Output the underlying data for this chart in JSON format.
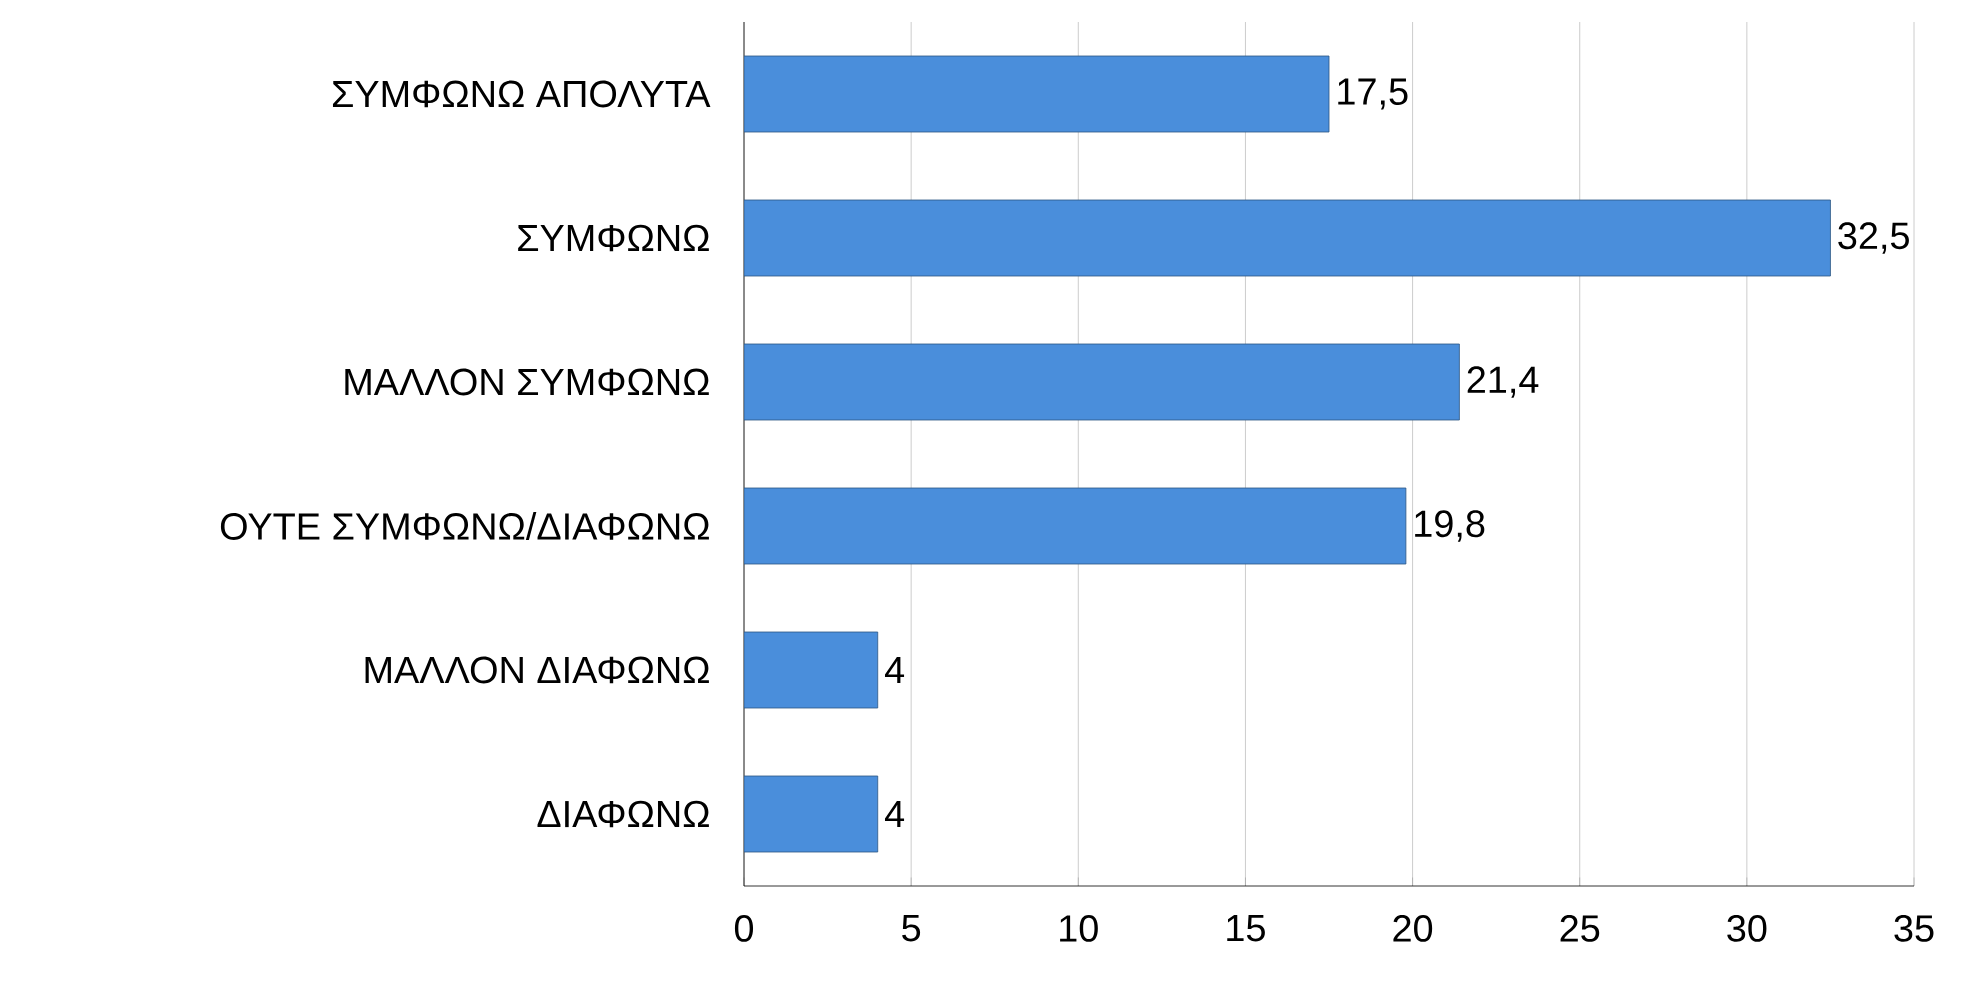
{
  "chart_data": {
    "type": "bar",
    "orientation": "horizontal",
    "categories": [
      "ΣΥΜΦΩΝΩ ΑΠΟΛΥΤΑ",
      "ΣΥΜΦΩΝΩ",
      "ΜΑΛΛΟΝ ΣΥΜΦΩΝΩ",
      "ΟΥΤΕ ΣΥΜΦΩΝΩ/ΔΙΑΦΩΝΩ",
      "ΜΑΛΛΟΝ ΔΙΑΦΩΝΩ",
      "ΔΙΑΦΩΝΩ"
    ],
    "values": [
      17.5,
      32.5,
      21.4,
      19.8,
      4,
      4
    ],
    "value_labels": [
      "17,5",
      "32,5",
      "21,4",
      "19,8",
      "4",
      "4"
    ],
    "color": "#4a8edb",
    "xlim": [
      0,
      35
    ],
    "xticks": [
      0,
      5,
      10,
      15,
      20,
      25,
      30,
      35
    ],
    "grid": "x"
  }
}
